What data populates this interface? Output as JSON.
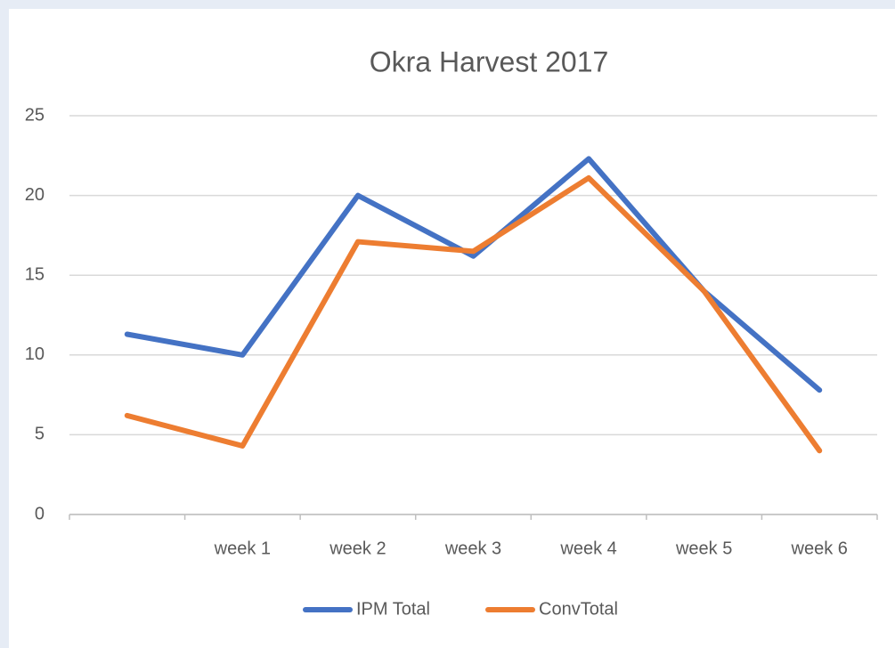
{
  "chart_data": {
    "type": "line",
    "title": "Okra Harvest 2017",
    "categories": [
      null,
      "week 1",
      "week 2",
      "week 3",
      "week 4",
      "week 5",
      "week 6"
    ],
    "series": [
      {
        "name": "IPM Total",
        "color": "#4472c4",
        "values": [
          11.3,
          10.0,
          20.0,
          16.2,
          22.3,
          14.0,
          7.8
        ]
      },
      {
        "name": "ConvTotal",
        "color": "#ed7d31",
        "values": [
          6.2,
          4.3,
          17.1,
          16.5,
          21.1,
          14.0,
          4.0
        ]
      }
    ],
    "ylim": [
      0,
      25
    ],
    "yticks": [
      0,
      5,
      10,
      15,
      20,
      25
    ],
    "grid": true,
    "legend": "bottom"
  }
}
